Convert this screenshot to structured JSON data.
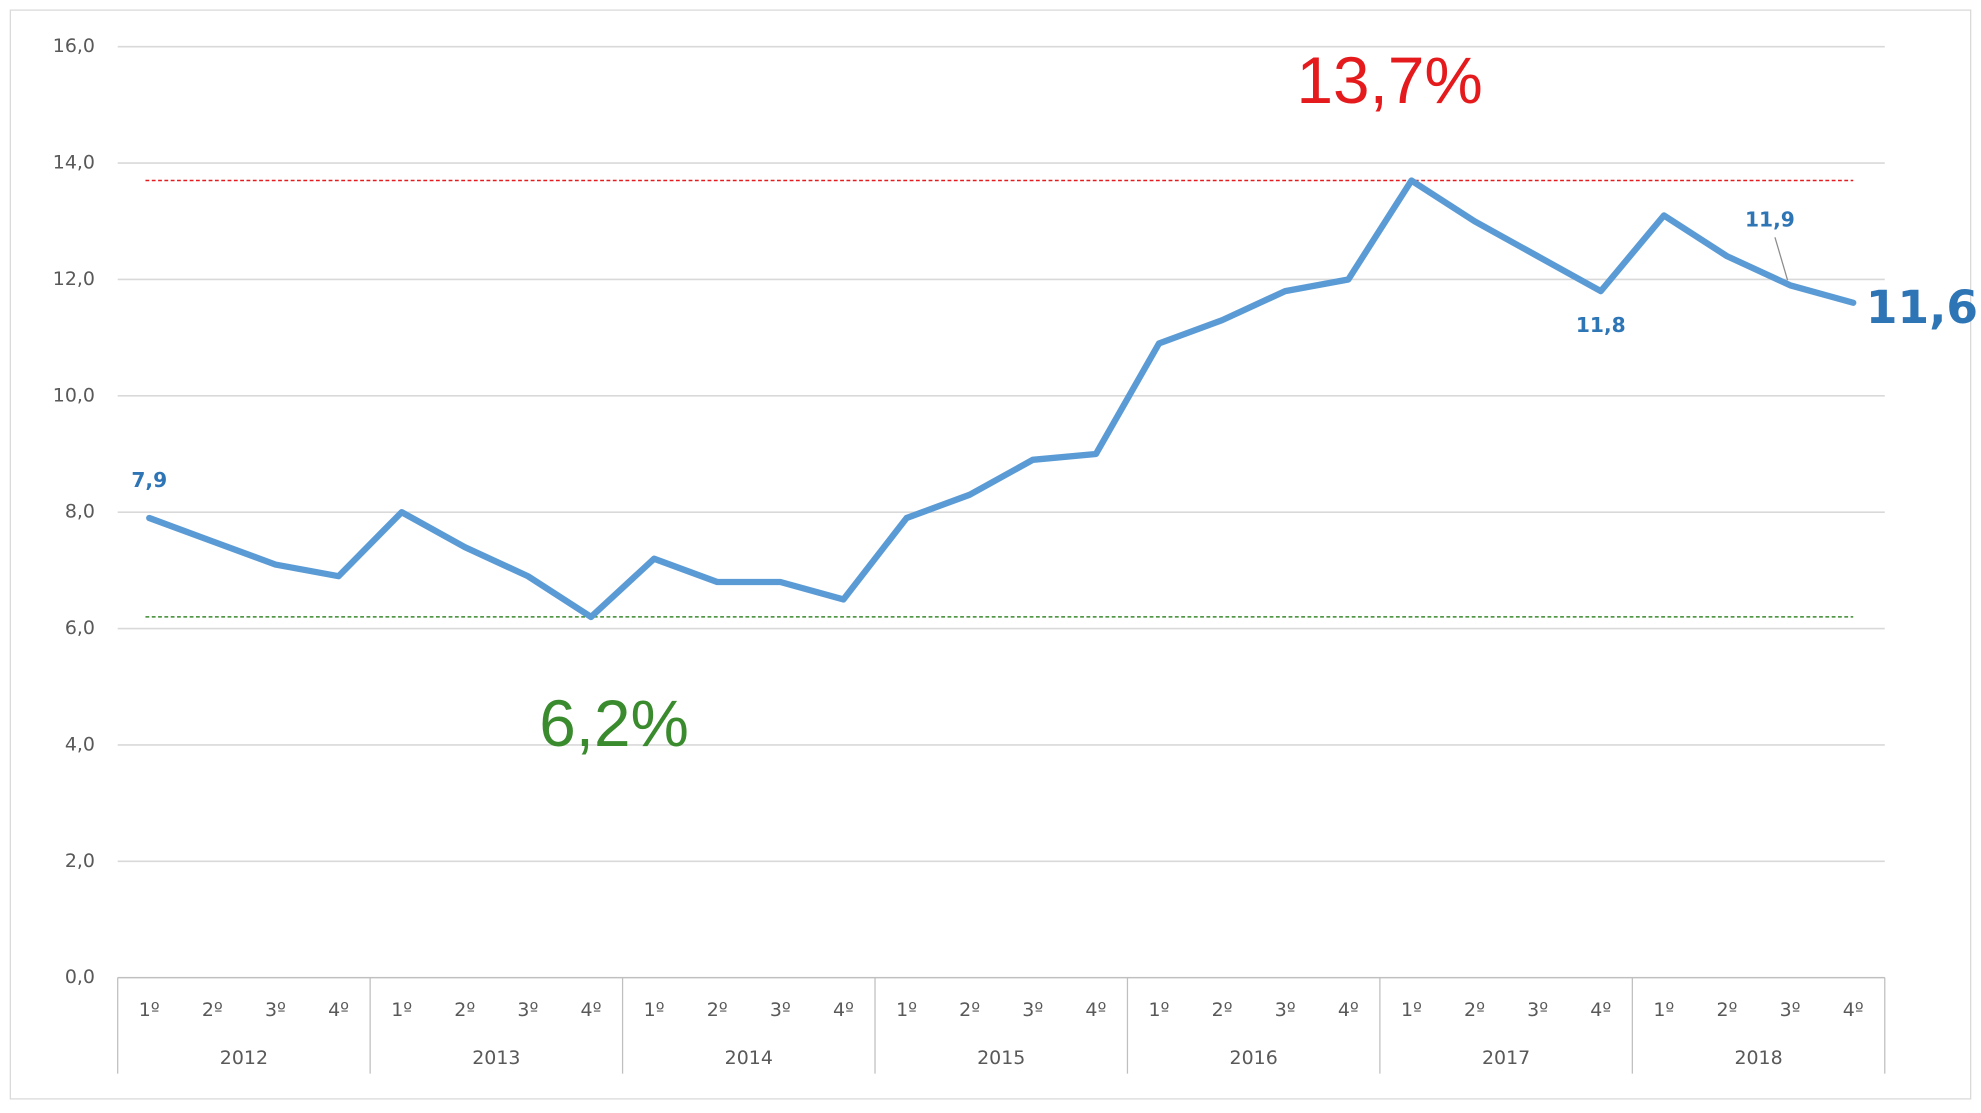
{
  "chart_data": {
    "type": "line",
    "categories": [
      "1º",
      "2º",
      "3º",
      "4º",
      "1º",
      "2º",
      "3º",
      "4º",
      "1º",
      "2º",
      "3º",
      "4º",
      "1º",
      "2º",
      "3º",
      "4º",
      "1º",
      "2º",
      "3º",
      "4º",
      "1º",
      "2º",
      "3º",
      "4º",
      "1º",
      "2º",
      "3º",
      "4º"
    ],
    "groups": [
      "2012",
      "2013",
      "2014",
      "2015",
      "2016",
      "2017",
      "2018"
    ],
    "series": [
      {
        "color": "#5b9bd5",
        "values": [
          7.9,
          7.5,
          7.1,
          6.9,
          8.0,
          7.4,
          6.9,
          6.2,
          7.2,
          6.8,
          6.8,
          6.5,
          7.9,
          8.3,
          8.9,
          9.0,
          10.9,
          11.3,
          11.8,
          12.0,
          13.7,
          13.0,
          12.4,
          11.8,
          13.1,
          12.4,
          11.9,
          11.6
        ],
        "value_labels": [
          "7,9",
          null,
          null,
          null,
          null,
          null,
          null,
          null,
          null,
          null,
          null,
          null,
          null,
          null,
          null,
          null,
          null,
          null,
          null,
          null,
          null,
          null,
          null,
          "11,8",
          null,
          null,
          "11,9",
          "11,6"
        ]
      }
    ],
    "ylim": [
      0,
      16
    ],
    "yticks": [
      {
        "value": 0,
        "label": "0,0"
      },
      {
        "value": 2,
        "label": "2,0"
      },
      {
        "value": 4,
        "label": "4,0"
      },
      {
        "value": 6,
        "label": "6,0"
      },
      {
        "value": 8,
        "label": "8,0"
      },
      {
        "value": 10,
        "label": "10,0"
      },
      {
        "value": 12,
        "label": "12,0"
      },
      {
        "value": 14,
        "label": "14,0"
      },
      {
        "value": 16,
        "label": "16,0"
      }
    ],
    "grid": true,
    "reference_lines": [
      {
        "value": 13.7,
        "color": "#e41a1c",
        "label": "13,7%"
      },
      {
        "value": 6.2,
        "color": "#3a8a2e",
        "label": "6,2%"
      }
    ]
  }
}
